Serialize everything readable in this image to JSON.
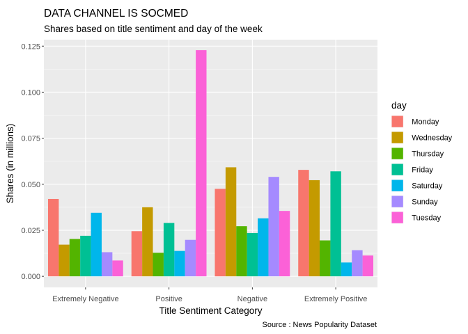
{
  "chart_data": {
    "type": "bar",
    "title": "DATA CHANNEL IS SOCMED",
    "subtitle": "Shares based on title sentiment and day of the week",
    "caption": "Source : News Popularity Dataset",
    "xlabel": "Title Sentiment Category",
    "ylabel": "Shares (in millions)",
    "ylim": [
      -0.006,
      0.1285
    ],
    "yticks": [
      0.0,
      0.025,
      0.05,
      0.075,
      0.1,
      0.125
    ],
    "ytick_labels": [
      "0.000",
      "0.025",
      "0.050",
      "0.075",
      "0.100",
      "0.125"
    ],
    "grid": true,
    "legend": {
      "title": "day",
      "position": "right"
    },
    "categories": [
      "Extremely Negative",
      "Positive",
      "Negative",
      "Extremely Positive"
    ],
    "series": [
      {
        "name": "Monday",
        "color": "#F8766D",
        "values": [
          0.042,
          0.0245,
          0.0475,
          0.0578
        ]
      },
      {
        "name": "Wednesday",
        "color": "#C49A00",
        "values": [
          0.0172,
          0.0375,
          0.0592,
          0.0522
        ]
      },
      {
        "name": "Thursday",
        "color": "#53B400",
        "values": [
          0.0203,
          0.0128,
          0.0272,
          0.0195
        ]
      },
      {
        "name": "Friday",
        "color": "#00C094",
        "values": [
          0.022,
          0.029,
          0.0235,
          0.057
        ]
      },
      {
        "name": "Saturday",
        "color": "#00B6EB",
        "values": [
          0.0345,
          0.0138,
          0.0315,
          0.0075
        ]
      },
      {
        "name": "Sunday",
        "color": "#A58AFF",
        "values": [
          0.0131,
          0.0198,
          0.054,
          0.0142
        ]
      },
      {
        "name": "Tuesday",
        "color": "#FB61D7",
        "values": [
          0.0086,
          0.1228,
          0.0355,
          0.0113
        ]
      }
    ]
  }
}
